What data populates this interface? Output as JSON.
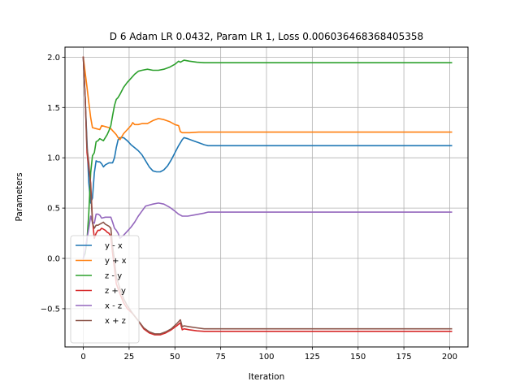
{
  "chart_data": {
    "type": "line",
    "title": "D 6 Adam LR 0.0432, Param LR 1, Loss 0.006036468368405358",
    "xlabel": "Iteration",
    "ylabel": "Parameters",
    "xlim": [
      -10,
      210
    ],
    "ylim": [
      -0.88,
      2.1
    ],
    "xticks": [
      0,
      25,
      50,
      75,
      100,
      125,
      150,
      175,
      200
    ],
    "xtick_labels": [
      "0",
      "25",
      "50",
      "75",
      "100",
      "125",
      "150",
      "175",
      "200"
    ],
    "yticks": [
      -0.5,
      0.0,
      0.5,
      1.0,
      1.5,
      2.0
    ],
    "ytick_labels": [
      "−0.5",
      "0.0",
      "0.5",
      "1.0",
      "1.5",
      "2.0"
    ],
    "grid": true,
    "legend_position": "lower-left",
    "series": [
      {
        "name": "y - x",
        "color": "#1f77b4",
        "points": [
          [
            0,
            2.0
          ],
          [
            1,
            1.6
          ],
          [
            2,
            1.15
          ],
          [
            3,
            0.75
          ],
          [
            4,
            0.55
          ],
          [
            5,
            0.6
          ],
          [
            6,
            0.85
          ],
          [
            7,
            0.97
          ],
          [
            8,
            0.96
          ],
          [
            9,
            0.96
          ],
          [
            10,
            0.94
          ],
          [
            11,
            0.91
          ],
          [
            12,
            0.93
          ],
          [
            14,
            0.95
          ],
          [
            16,
            0.95
          ],
          [
            17,
            1.0
          ],
          [
            18,
            1.1
          ],
          [
            19,
            1.18
          ],
          [
            20,
            1.2
          ],
          [
            22,
            1.2
          ],
          [
            24,
            1.17
          ],
          [
            26,
            1.13
          ],
          [
            28,
            1.1
          ],
          [
            30,
            1.07
          ],
          [
            32,
            1.03
          ],
          [
            34,
            0.97
          ],
          [
            36,
            0.91
          ],
          [
            38,
            0.87
          ],
          [
            40,
            0.86
          ],
          [
            42,
            0.86
          ],
          [
            44,
            0.88
          ],
          [
            46,
            0.92
          ],
          [
            48,
            0.98
          ],
          [
            50,
            1.05
          ],
          [
            52,
            1.12
          ],
          [
            54,
            1.18
          ],
          [
            55,
            1.2
          ],
          [
            57,
            1.19
          ],
          [
            60,
            1.17
          ],
          [
            63,
            1.15
          ],
          [
            66,
            1.13
          ],
          [
            68,
            1.12
          ],
          [
            80,
            1.12
          ],
          [
            120,
            1.12
          ],
          [
            160,
            1.12
          ],
          [
            201,
            1.12
          ]
        ]
      },
      {
        "name": "y + x",
        "color": "#ff7f0e",
        "points": [
          [
            0,
            2.0
          ],
          [
            1,
            1.85
          ],
          [
            2,
            1.7
          ],
          [
            3,
            1.55
          ],
          [
            4,
            1.4
          ],
          [
            5,
            1.3
          ],
          [
            7,
            1.29
          ],
          [
            9,
            1.28
          ],
          [
            10,
            1.32
          ],
          [
            12,
            1.31
          ],
          [
            14,
            1.3
          ],
          [
            15,
            1.29
          ],
          [
            16,
            1.27
          ],
          [
            17,
            1.25
          ],
          [
            18,
            1.23
          ],
          [
            19,
            1.2
          ],
          [
            20,
            1.18
          ],
          [
            22,
            1.24
          ],
          [
            24,
            1.28
          ],
          [
            26,
            1.32
          ],
          [
            27,
            1.35
          ],
          [
            28,
            1.33
          ],
          [
            30,
            1.33
          ],
          [
            32,
            1.34
          ],
          [
            35,
            1.34
          ],
          [
            38,
            1.37
          ],
          [
            41,
            1.39
          ],
          [
            44,
            1.38
          ],
          [
            47,
            1.36
          ],
          [
            50,
            1.33
          ],
          [
            52,
            1.32
          ],
          [
            53,
            1.26
          ],
          [
            54,
            1.25
          ],
          [
            58,
            1.25
          ],
          [
            63,
            1.255
          ],
          [
            68,
            1.255
          ],
          [
            100,
            1.255
          ],
          [
            150,
            1.255
          ],
          [
            201,
            1.255
          ]
        ]
      },
      {
        "name": "z - y",
        "color": "#2ca02c",
        "points": [
          [
            0,
            0.0
          ],
          [
            1,
            0.05
          ],
          [
            2,
            0.18
          ],
          [
            3,
            0.45
          ],
          [
            4,
            0.85
          ],
          [
            5,
            1.02
          ],
          [
            6,
            1.05
          ],
          [
            7,
            1.16
          ],
          [
            8,
            1.17
          ],
          [
            9,
            1.19
          ],
          [
            10,
            1.18
          ],
          [
            11,
            1.17
          ],
          [
            12,
            1.2
          ],
          [
            13,
            1.23
          ],
          [
            14,
            1.27
          ],
          [
            15,
            1.32
          ],
          [
            16,
            1.42
          ],
          [
            17,
            1.52
          ],
          [
            18,
            1.58
          ],
          [
            19,
            1.6
          ],
          [
            20,
            1.63
          ],
          [
            22,
            1.7
          ],
          [
            24,
            1.75
          ],
          [
            26,
            1.79
          ],
          [
            28,
            1.83
          ],
          [
            30,
            1.86
          ],
          [
            32,
            1.87
          ],
          [
            35,
            1.88
          ],
          [
            38,
            1.87
          ],
          [
            41,
            1.87
          ],
          [
            44,
            1.88
          ],
          [
            47,
            1.9
          ],
          [
            50,
            1.93
          ],
          [
            52,
            1.96
          ],
          [
            53,
            1.95
          ],
          [
            55,
            1.97
          ],
          [
            58,
            1.96
          ],
          [
            62,
            1.95
          ],
          [
            66,
            1.945
          ],
          [
            70,
            1.945
          ],
          [
            100,
            1.945
          ],
          [
            150,
            1.945
          ],
          [
            201,
            1.945
          ]
        ]
      },
      {
        "name": "z + y",
        "color": "#d62728",
        "points": [
          [
            0,
            2.0
          ],
          [
            1,
            1.6
          ],
          [
            2,
            1.05
          ],
          [
            3,
            0.9
          ],
          [
            4,
            0.75
          ],
          [
            5,
            0.38
          ],
          [
            6,
            0.2
          ],
          [
            7,
            0.25
          ],
          [
            8,
            0.28
          ],
          [
            9,
            0.28
          ],
          [
            10,
            0.3
          ],
          [
            11,
            0.29
          ],
          [
            12,
            0.28
          ],
          [
            13,
            0.26
          ],
          [
            14,
            0.25
          ],
          [
            15,
            0.22
          ],
          [
            16,
            0.05
          ],
          [
            17,
            -0.1
          ],
          [
            18,
            -0.25
          ],
          [
            20,
            -0.35
          ],
          [
            22,
            -0.44
          ],
          [
            24,
            -0.5
          ],
          [
            27,
            -0.55
          ],
          [
            30,
            -0.62
          ],
          [
            33,
            -0.7
          ],
          [
            36,
            -0.74
          ],
          [
            39,
            -0.76
          ],
          [
            42,
            -0.76
          ],
          [
            45,
            -0.74
          ],
          [
            48,
            -0.71
          ],
          [
            51,
            -0.67
          ],
          [
            53,
            -0.64
          ],
          [
            54,
            -0.71
          ],
          [
            55,
            -0.7
          ],
          [
            58,
            -0.71
          ],
          [
            62,
            -0.72
          ],
          [
            66,
            -0.725
          ],
          [
            70,
            -0.725
          ],
          [
            100,
            -0.725
          ],
          [
            150,
            -0.725
          ],
          [
            201,
            -0.725
          ]
        ]
      },
      {
        "name": "x - z",
        "color": "#9467bd",
        "points": [
          [
            0,
            0.0
          ],
          [
            1,
            0.08
          ],
          [
            2,
            0.2
          ],
          [
            3,
            0.3
          ],
          [
            4,
            0.42
          ],
          [
            5,
            0.36
          ],
          [
            6,
            0.35
          ],
          [
            7,
            0.44
          ],
          [
            8,
            0.44
          ],
          [
            9,
            0.43
          ],
          [
            10,
            0.4
          ],
          [
            12,
            0.41
          ],
          [
            14,
            0.41
          ],
          [
            15,
            0.41
          ],
          [
            16,
            0.36
          ],
          [
            17,
            0.3
          ],
          [
            18,
            0.28
          ],
          [
            19,
            0.25
          ],
          [
            20,
            0.2
          ],
          [
            22,
            0.23
          ],
          [
            24,
            0.27
          ],
          [
            26,
            0.31
          ],
          [
            28,
            0.36
          ],
          [
            30,
            0.42
          ],
          [
            32,
            0.47
          ],
          [
            34,
            0.52
          ],
          [
            36,
            0.53
          ],
          [
            38,
            0.54
          ],
          [
            41,
            0.55
          ],
          [
            44,
            0.54
          ],
          [
            47,
            0.51
          ],
          [
            50,
            0.47
          ],
          [
            52,
            0.44
          ],
          [
            54,
            0.42
          ],
          [
            57,
            0.42
          ],
          [
            60,
            0.43
          ],
          [
            63,
            0.44
          ],
          [
            66,
            0.45
          ],
          [
            68,
            0.46
          ],
          [
            100,
            0.46
          ],
          [
            150,
            0.46
          ],
          [
            201,
            0.46
          ]
        ]
      },
      {
        "name": "x + z",
        "color": "#8c564b",
        "points": [
          [
            0,
            2.0
          ],
          [
            1,
            1.6
          ],
          [
            2,
            1.1
          ],
          [
            3,
            0.95
          ],
          [
            4,
            0.7
          ],
          [
            5,
            0.35
          ],
          [
            6,
            0.3
          ],
          [
            7,
            0.33
          ],
          [
            8,
            0.33
          ],
          [
            9,
            0.34
          ],
          [
            10,
            0.35
          ],
          [
            11,
            0.36
          ],
          [
            12,
            0.34
          ],
          [
            13,
            0.33
          ],
          [
            14,
            0.32
          ],
          [
            15,
            0.3
          ],
          [
            16,
            0.12
          ],
          [
            17,
            -0.02
          ],
          [
            18,
            -0.18
          ],
          [
            20,
            -0.3
          ],
          [
            22,
            -0.4
          ],
          [
            24,
            -0.47
          ],
          [
            27,
            -0.55
          ],
          [
            30,
            -0.62
          ],
          [
            33,
            -0.69
          ],
          [
            36,
            -0.73
          ],
          [
            39,
            -0.75
          ],
          [
            42,
            -0.75
          ],
          [
            45,
            -0.73
          ],
          [
            48,
            -0.7
          ],
          [
            51,
            -0.65
          ],
          [
            53,
            -0.61
          ],
          [
            54,
            -0.68
          ],
          [
            55,
            -0.67
          ],
          [
            58,
            -0.68
          ],
          [
            62,
            -0.69
          ],
          [
            66,
            -0.7
          ],
          [
            70,
            -0.7
          ],
          [
            100,
            -0.7
          ],
          [
            150,
            -0.7
          ],
          [
            201,
            -0.7
          ]
        ]
      }
    ]
  }
}
